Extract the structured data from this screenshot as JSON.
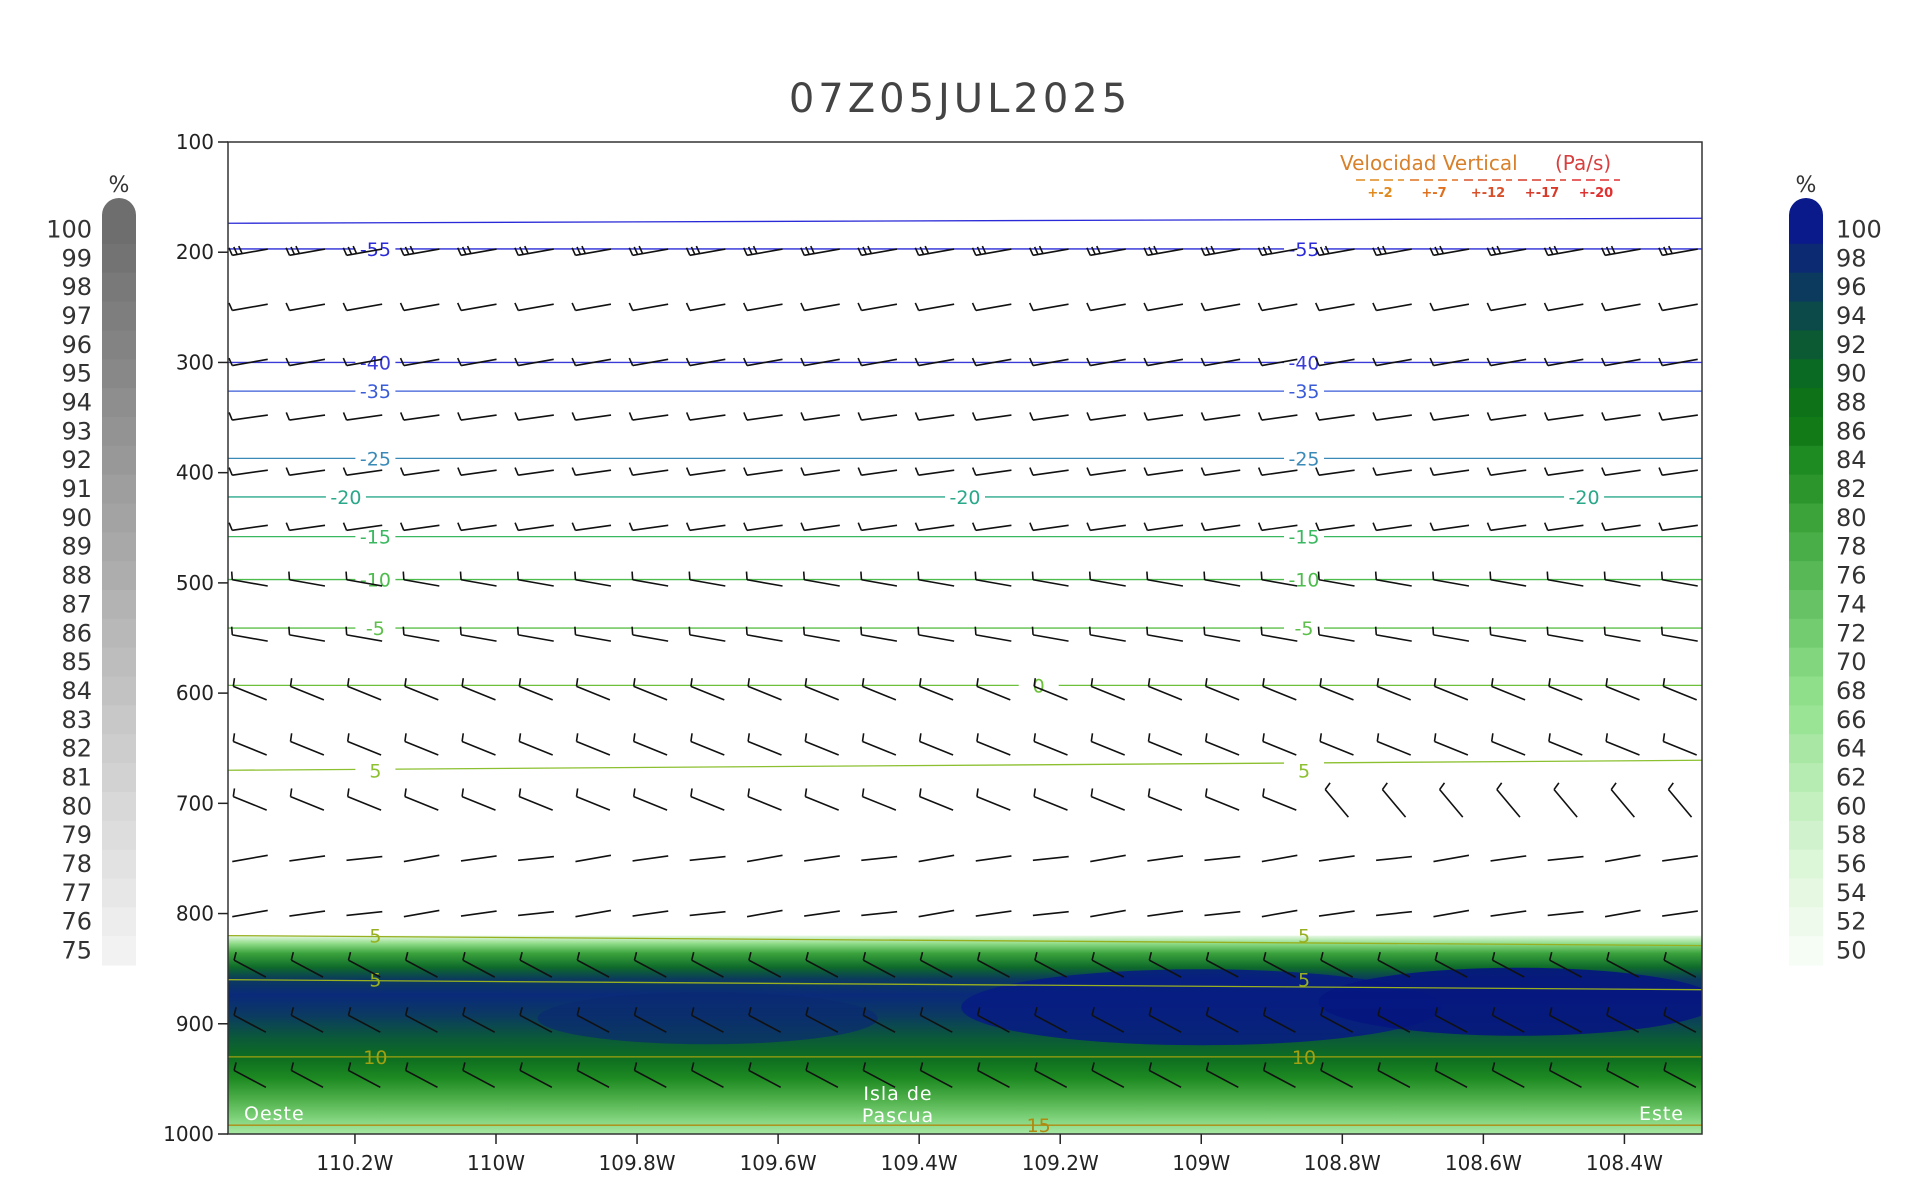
{
  "chart_data": {
    "type": "cross-section",
    "title": "07Z05JUL2025",
    "y_axis": {
      "label": "",
      "ticks": [
        100,
        200,
        300,
        400,
        500,
        600,
        700,
        800,
        900,
        1000
      ],
      "range": [
        100,
        1000
      ],
      "direction": "pressure-decreasing-up"
    },
    "x_axis": {
      "ticks": [
        "110.2W",
        "110W",
        "109.8W",
        "109.6W",
        "109.4W",
        "109.2W",
        "109W",
        "108.8W",
        "108.6W",
        "108.4W"
      ],
      "tick_values": [
        -110.2,
        -110.0,
        -109.8,
        -109.6,
        -109.4,
        -109.2,
        -109.0,
        -108.8,
        -108.6,
        -108.4
      ],
      "range": [
        -110.38,
        -108.29
      ]
    },
    "annotations": {
      "west": "Oeste",
      "east": "Este",
      "island_line1": "Isla de",
      "island_line2": "Pascua"
    },
    "vertical_velocity_legend": {
      "title": "Velocidad Vertical",
      "unit": "(Pa/s)",
      "entries": [
        "+-2",
        "+-7",
        "+-12",
        "+-17",
        "+-20"
      ],
      "colors": [
        "#e08a1e",
        "#e0701e",
        "#d8502a",
        "#d83a2a",
        "#e03030"
      ]
    },
    "left_colorbar": {
      "unit": "%",
      "labels": [
        "100",
        "99",
        "98",
        "97",
        "96",
        "95",
        "94",
        "93",
        "92",
        "91",
        "90",
        "89",
        "88",
        "87",
        "86",
        "85",
        "84",
        "83",
        "82",
        "81",
        "80",
        "79",
        "78",
        "77",
        "76",
        "75"
      ],
      "color_top": "#6e6e6e",
      "color_bottom": "#f2f2f2"
    },
    "right_colorbar": {
      "unit": "%",
      "labels": [
        "100",
        "98",
        "96",
        "94",
        "92",
        "90",
        "88",
        "86",
        "84",
        "82",
        "80",
        "78",
        "76",
        "74",
        "72",
        "70",
        "68",
        "66",
        "64",
        "62",
        "60",
        "58",
        "56",
        "54",
        "52",
        "50"
      ],
      "colors": [
        "#0a1a8a",
        "#0b2a72",
        "#0b3a5e",
        "#0b4a48",
        "#0b5a34",
        "#0a6a24",
        "#0d7218",
        "#137a18",
        "#1e8a22",
        "#2c962c",
        "#3ca23a",
        "#4aae48",
        "#58b856",
        "#66c264",
        "#74cc70",
        "#82d67e",
        "#8ede8a",
        "#9ae496",
        "#a8e8a4",
        "#b6ecb2",
        "#c4f0c0",
        "#d0f2cc",
        "#dcf6d8",
        "#e6f8e2",
        "#eefaec",
        "#f6fdf4"
      ]
    },
    "temperature_isotherms": [
      {
        "value": -55,
        "pressure": 197,
        "color": "#2a2ad8",
        "labels": [
          "-55",
          "-55"
        ]
      },
      {
        "value": -40,
        "pressure": 300,
        "color": "#3a3ad8",
        "labels": [
          "-40",
          "-40"
        ]
      },
      {
        "value": -35,
        "pressure": 326,
        "color": "#3a5cd8",
        "labels": [
          "-35",
          "-35"
        ]
      },
      {
        "value": -25,
        "pressure": 387,
        "color": "#3a8ab8",
        "labels": [
          "-25",
          "-25"
        ]
      },
      {
        "value": -20,
        "pressure": 422,
        "color": "#2aa88a",
        "labels": [
          "-20",
          "-20",
          "-20"
        ]
      },
      {
        "value": -15,
        "pressure": 458,
        "color": "#3ab860",
        "labels": [
          "-15",
          "-15"
        ]
      },
      {
        "value": -10,
        "pressure": 497,
        "color": "#4cbc4c",
        "labels": [
          "-10",
          "-10"
        ]
      },
      {
        "value": -5,
        "pressure": 541,
        "color": "#5cc04a",
        "labels": [
          "-5",
          "-5"
        ]
      },
      {
        "value": 0,
        "pressure": 593,
        "color": "#6cc03a",
        "labels": [
          "0"
        ]
      },
      {
        "value": 5,
        "pressure": 670,
        "color": "#8cc030",
        "labels": [
          "5",
          "5"
        ]
      },
      {
        "value": 5,
        "pressure": 820,
        "color": "#98b020",
        "labels": [
          "5",
          "5"
        ]
      },
      {
        "value": 5,
        "pressure": 860,
        "color": "#98b020",
        "labels": [
          "5",
          "5"
        ]
      },
      {
        "value": 10,
        "pressure": 930,
        "color": "#a0a010",
        "labels": [
          "10",
          "10"
        ]
      },
      {
        "value": 15,
        "pressure": 992,
        "color": "#b08a10",
        "labels": [
          "15"
        ]
      }
    ],
    "extra_isobar_line": {
      "pressure": 171,
      "color": "#2a2ad8"
    },
    "humidity_field": {
      "range_pressure": [
        820,
        1000
      ],
      "max_value": 100,
      "min_value": 50
    },
    "wind_barb_levels": [
      200,
      250,
      300,
      350,
      400,
      450,
      500,
      550,
      600,
      650,
      700,
      750,
      800,
      850,
      900,
      950
    ]
  }
}
